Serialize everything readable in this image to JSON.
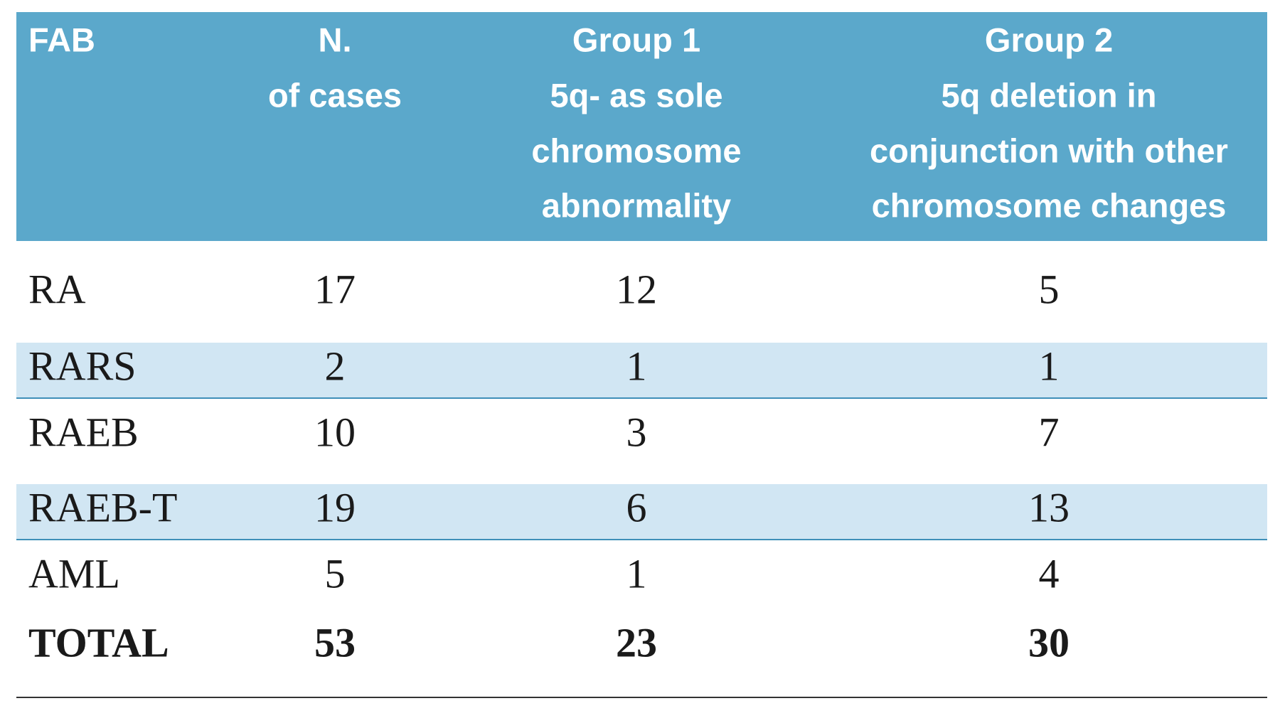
{
  "table": {
    "header": [
      [
        "FAB"
      ],
      [
        "N.",
        "of cases"
      ],
      [
        "Group 1",
        "5q- as sole",
        "chromosome",
        "abnormality"
      ],
      [
        "Group 2",
        "5q deletion in",
        "conjunction with other",
        "chromosome changes"
      ]
    ],
    "rows": [
      [
        "RA",
        "17",
        "12",
        "5"
      ],
      [
        "RARS",
        "2",
        "1",
        "1"
      ],
      [
        "RAEB",
        "10",
        "3",
        "7"
      ],
      [
        "RAEB-T",
        "19",
        "6",
        "13"
      ],
      [
        "AML",
        "5",
        "1",
        "4"
      ]
    ],
    "total": [
      "TOTAL",
      "53",
      "23",
      "30"
    ]
  }
}
